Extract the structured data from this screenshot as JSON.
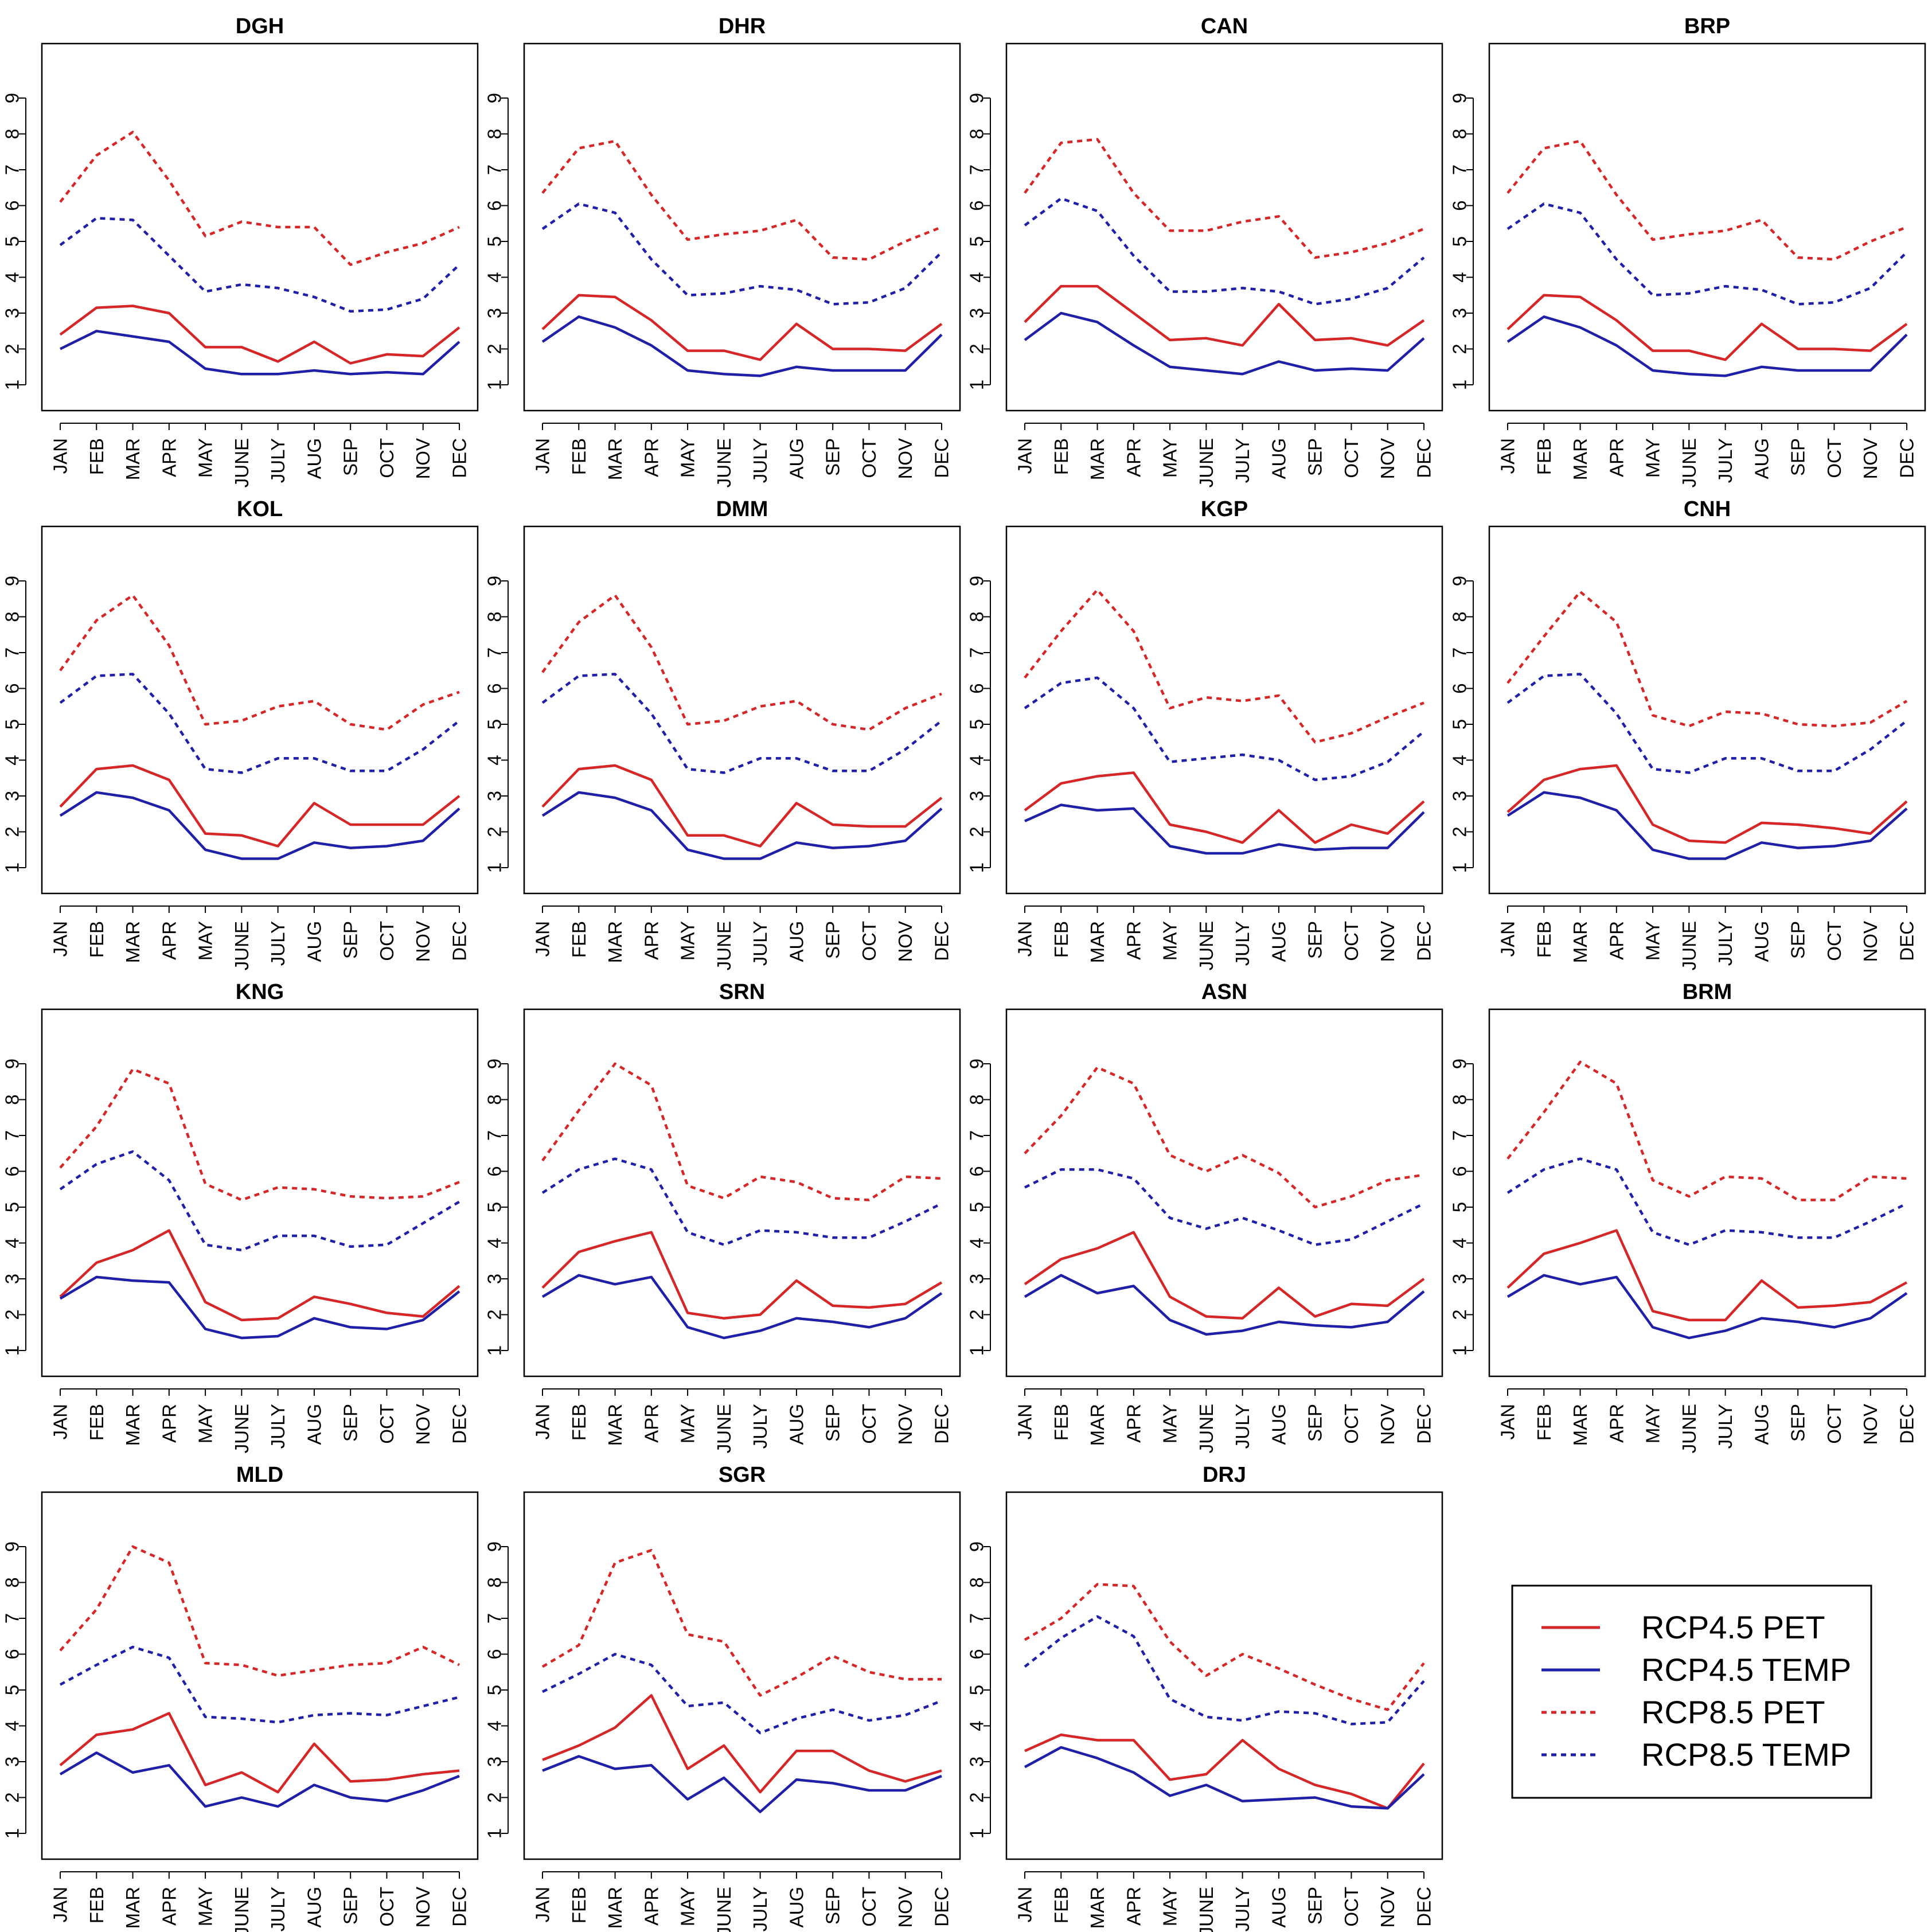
{
  "chart_data": {
    "type": "line",
    "layout": "small-multiples",
    "categories": [
      "JAN",
      "FEB",
      "MAR",
      "APR",
      "MAY",
      "JUNE",
      "JULY",
      "AUG",
      "SEP",
      "OCT",
      "NOV",
      "DEC"
    ],
    "ylim": [
      1,
      9
    ],
    "yticks": [
      "1",
      "2",
      "3",
      "4",
      "5",
      "6",
      "7",
      "8",
      "9"
    ],
    "grid": false,
    "series_styles": [
      {
        "key": "pet45",
        "name": "RCP4.5 PET",
        "color": "#d62728",
        "dash": "solid"
      },
      {
        "key": "temp45",
        "name": "RCP4.5 TEMP",
        "color": "#1f1fa8",
        "dash": "solid"
      },
      {
        "key": "pet85",
        "name": "RCP8.5 PET",
        "color": "#d62728",
        "dash": "dotted"
      },
      {
        "key": "temp85",
        "name": "RCP8.5 TEMP",
        "color": "#1f1fa8",
        "dash": "dotted"
      }
    ],
    "legend": {
      "position": "bottom-right",
      "entries": [
        "RCP4.5 PET",
        "RCP4.5 TEMP",
        "RCP8.5 PET",
        "RCP8.5 TEMP"
      ]
    },
    "panels": [
      {
        "title": "DGH",
        "pet45": [
          2.4,
          3.15,
          3.2,
          3.0,
          2.05,
          2.05,
          1.65,
          2.2,
          1.6,
          1.85,
          1.8,
          2.6
        ],
        "temp45": [
          2.0,
          2.5,
          2.35,
          2.2,
          1.45,
          1.3,
          1.3,
          1.4,
          1.3,
          1.35,
          1.3,
          2.2
        ],
        "pet85": [
          6.1,
          7.4,
          8.05,
          6.7,
          5.15,
          5.55,
          5.4,
          5.4,
          4.35,
          4.7,
          4.95,
          5.4
        ],
        "temp85": [
          4.9,
          5.65,
          5.6,
          4.6,
          3.6,
          3.8,
          3.7,
          3.45,
          3.05,
          3.1,
          3.4,
          4.35
        ]
      },
      {
        "title": "DHR",
        "pet45": [
          2.55,
          3.5,
          3.45,
          2.8,
          1.95,
          1.95,
          1.7,
          2.7,
          2.0,
          2.0,
          1.95,
          2.7
        ],
        "temp45": [
          2.2,
          2.9,
          2.6,
          2.1,
          1.4,
          1.3,
          1.25,
          1.5,
          1.4,
          1.4,
          1.4,
          2.4
        ],
        "pet85": [
          6.35,
          7.6,
          7.8,
          6.3,
          5.05,
          5.2,
          5.3,
          5.6,
          4.55,
          4.5,
          5.0,
          5.4
        ],
        "temp85": [
          5.35,
          6.05,
          5.8,
          4.5,
          3.5,
          3.55,
          3.75,
          3.65,
          3.25,
          3.3,
          3.7,
          4.7
        ]
      },
      {
        "title": "CAN",
        "pet45": [
          2.75,
          3.75,
          3.75,
          3.0,
          2.25,
          2.3,
          2.1,
          3.25,
          2.25,
          2.3,
          2.1,
          2.8
        ],
        "temp45": [
          2.25,
          3.0,
          2.75,
          2.1,
          1.5,
          1.4,
          1.3,
          1.65,
          1.4,
          1.45,
          1.4,
          2.3
        ],
        "pet85": [
          6.35,
          7.75,
          7.85,
          6.35,
          5.3,
          5.3,
          5.55,
          5.7,
          4.55,
          4.7,
          4.95,
          5.35
        ],
        "temp85": [
          5.45,
          6.2,
          5.85,
          4.6,
          3.6,
          3.6,
          3.7,
          3.6,
          3.25,
          3.4,
          3.7,
          4.55
        ]
      },
      {
        "title": "BRP",
        "pet45": [
          2.55,
          3.5,
          3.45,
          2.8,
          1.95,
          1.95,
          1.7,
          2.7,
          2.0,
          2.0,
          1.95,
          2.7
        ],
        "temp45": [
          2.2,
          2.9,
          2.6,
          2.1,
          1.4,
          1.3,
          1.25,
          1.5,
          1.4,
          1.4,
          1.4,
          2.4
        ],
        "pet85": [
          6.35,
          7.6,
          7.8,
          6.3,
          5.05,
          5.2,
          5.3,
          5.6,
          4.55,
          4.5,
          5.0,
          5.4
        ],
        "temp85": [
          5.35,
          6.05,
          5.8,
          4.5,
          3.5,
          3.55,
          3.75,
          3.65,
          3.25,
          3.3,
          3.7,
          4.7
        ]
      },
      {
        "title": "KOL",
        "pet45": [
          2.7,
          3.75,
          3.85,
          3.45,
          1.95,
          1.9,
          1.6,
          2.8,
          2.2,
          2.2,
          2.2,
          3.0
        ],
        "temp45": [
          2.45,
          3.1,
          2.95,
          2.6,
          1.5,
          1.25,
          1.25,
          1.7,
          1.55,
          1.6,
          1.75,
          2.65
        ],
        "pet85": [
          6.5,
          7.9,
          8.6,
          7.2,
          5.0,
          5.1,
          5.5,
          5.65,
          5.0,
          4.85,
          5.55,
          5.9
        ],
        "temp85": [
          5.6,
          6.35,
          6.4,
          5.3,
          3.75,
          3.65,
          4.05,
          4.05,
          3.7,
          3.7,
          4.3,
          5.1
        ]
      },
      {
        "title": "DMM",
        "pet45": [
          2.7,
          3.75,
          3.85,
          3.45,
          1.9,
          1.9,
          1.6,
          2.8,
          2.2,
          2.15,
          2.15,
          2.95
        ],
        "temp45": [
          2.45,
          3.1,
          2.95,
          2.6,
          1.5,
          1.25,
          1.25,
          1.7,
          1.55,
          1.6,
          1.75,
          2.65
        ],
        "pet85": [
          6.45,
          7.85,
          8.6,
          7.15,
          5.0,
          5.1,
          5.5,
          5.65,
          5.0,
          4.85,
          5.45,
          5.85
        ],
        "temp85": [
          5.6,
          6.35,
          6.4,
          5.3,
          3.75,
          3.65,
          4.05,
          4.05,
          3.7,
          3.7,
          4.3,
          5.1
        ]
      },
      {
        "title": "KGP",
        "pet45": [
          2.6,
          3.35,
          3.55,
          3.65,
          2.2,
          2.0,
          1.7,
          2.6,
          1.7,
          2.2,
          1.95,
          2.85
        ],
        "temp45": [
          2.3,
          2.75,
          2.6,
          2.65,
          1.6,
          1.4,
          1.4,
          1.65,
          1.5,
          1.55,
          1.55,
          2.55
        ],
        "pet85": [
          6.3,
          7.6,
          8.75,
          7.6,
          5.45,
          5.75,
          5.65,
          5.8,
          4.5,
          4.75,
          5.2,
          5.6
        ],
        "temp85": [
          5.45,
          6.15,
          6.3,
          5.45,
          3.95,
          4.05,
          4.15,
          4.0,
          3.45,
          3.55,
          3.95,
          4.8
        ]
      },
      {
        "title": "CNH",
        "pet45": [
          2.55,
          3.45,
          3.75,
          3.85,
          2.2,
          1.75,
          1.7,
          2.25,
          2.2,
          2.1,
          1.95,
          2.85
        ],
        "temp45": [
          2.45,
          3.1,
          2.95,
          2.6,
          1.5,
          1.25,
          1.25,
          1.7,
          1.55,
          1.6,
          1.75,
          2.65
        ],
        "pet85": [
          6.15,
          7.45,
          8.7,
          7.85,
          5.25,
          4.95,
          5.35,
          5.3,
          5.0,
          4.95,
          5.05,
          5.65
        ],
        "temp85": [
          5.6,
          6.35,
          6.4,
          5.3,
          3.75,
          3.65,
          4.05,
          4.05,
          3.7,
          3.7,
          4.3,
          5.1
        ]
      },
      {
        "title": "KNG",
        "pet45": [
          2.5,
          3.45,
          3.8,
          4.35,
          2.35,
          1.85,
          1.9,
          2.5,
          2.3,
          2.05,
          1.95,
          2.8
        ],
        "temp45": [
          2.45,
          3.05,
          2.95,
          2.9,
          1.6,
          1.35,
          1.4,
          1.9,
          1.65,
          1.6,
          1.85,
          2.65
        ],
        "pet85": [
          6.1,
          7.25,
          8.85,
          8.45,
          5.65,
          5.2,
          5.55,
          5.5,
          5.3,
          5.25,
          5.3,
          5.7
        ],
        "temp85": [
          5.5,
          6.2,
          6.55,
          5.75,
          3.95,
          3.8,
          4.2,
          4.2,
          3.9,
          3.95,
          4.55,
          5.15
        ]
      },
      {
        "title": "SRN",
        "pet45": [
          2.75,
          3.75,
          4.05,
          4.3,
          2.05,
          1.9,
          2.0,
          2.95,
          2.25,
          2.2,
          2.3,
          2.9
        ],
        "temp45": [
          2.5,
          3.1,
          2.85,
          3.05,
          1.65,
          1.35,
          1.55,
          1.9,
          1.8,
          1.65,
          1.9,
          2.6
        ],
        "pet85": [
          6.3,
          7.7,
          9.0,
          8.4,
          5.6,
          5.25,
          5.85,
          5.7,
          5.25,
          5.2,
          5.85,
          5.8
        ],
        "temp85": [
          5.4,
          6.05,
          6.35,
          6.05,
          4.3,
          3.95,
          4.35,
          4.3,
          4.15,
          4.15,
          4.6,
          5.1
        ]
      },
      {
        "title": "ASN",
        "pet45": [
          2.85,
          3.55,
          3.85,
          4.3,
          2.5,
          1.95,
          1.9,
          2.75,
          1.95,
          2.3,
          2.25,
          3.0
        ],
        "temp45": [
          2.5,
          3.1,
          2.6,
          2.8,
          1.85,
          1.45,
          1.55,
          1.8,
          1.7,
          1.65,
          1.8,
          2.65
        ],
        "pet85": [
          6.5,
          7.55,
          8.9,
          8.45,
          6.45,
          6.0,
          6.45,
          5.95,
          5.0,
          5.3,
          5.75,
          5.9
        ],
        "temp85": [
          5.55,
          6.05,
          6.05,
          5.8,
          4.7,
          4.4,
          4.7,
          4.35,
          3.95,
          4.1,
          4.6,
          5.1
        ]
      },
      {
        "title": "BRM",
        "pet45": [
          2.75,
          3.7,
          4.0,
          4.35,
          2.1,
          1.85,
          1.85,
          2.95,
          2.2,
          2.25,
          2.35,
          2.9
        ],
        "temp45": [
          2.5,
          3.1,
          2.85,
          3.05,
          1.65,
          1.35,
          1.55,
          1.9,
          1.8,
          1.65,
          1.9,
          2.6
        ],
        "pet85": [
          6.35,
          7.65,
          9.05,
          8.45,
          5.75,
          5.3,
          5.85,
          5.8,
          5.2,
          5.2,
          5.85,
          5.8
        ],
        "temp85": [
          5.4,
          6.05,
          6.35,
          6.05,
          4.3,
          3.95,
          4.35,
          4.3,
          4.15,
          4.15,
          4.6,
          5.1
        ]
      },
      {
        "title": "MLD",
        "pet45": [
          2.9,
          3.75,
          3.9,
          4.35,
          2.35,
          2.7,
          2.15,
          3.5,
          2.45,
          2.5,
          2.65,
          2.75
        ],
        "temp45": [
          2.65,
          3.25,
          2.7,
          2.9,
          1.75,
          2.0,
          1.75,
          2.35,
          2.0,
          1.9,
          2.2,
          2.6
        ],
        "pet85": [
          6.1,
          7.25,
          9.0,
          8.55,
          5.75,
          5.7,
          5.4,
          5.55,
          5.7,
          5.75,
          6.2,
          5.7
        ],
        "temp85": [
          5.15,
          5.7,
          6.2,
          5.9,
          4.25,
          4.2,
          4.1,
          4.3,
          4.35,
          4.3,
          4.55,
          4.8
        ]
      },
      {
        "title": "SGR",
        "pet45": [
          3.05,
          3.45,
          3.95,
          4.85,
          2.8,
          3.45,
          2.15,
          3.3,
          3.3,
          2.75,
          2.45,
          2.75
        ],
        "temp45": [
          2.75,
          3.15,
          2.8,
          2.9,
          1.95,
          2.55,
          1.6,
          2.5,
          2.4,
          2.2,
          2.2,
          2.6
        ],
        "pet85": [
          5.65,
          6.25,
          8.55,
          8.9,
          6.55,
          6.35,
          4.85,
          5.35,
          5.95,
          5.5,
          5.3,
          5.3
        ],
        "temp85": [
          4.95,
          5.45,
          6.0,
          5.7,
          4.55,
          4.65,
          3.8,
          4.2,
          4.45,
          4.15,
          4.3,
          4.7
        ]
      },
      {
        "title": "DRJ",
        "pet45": [
          3.3,
          3.75,
          3.6,
          3.6,
          2.5,
          2.65,
          3.6,
          2.8,
          2.35,
          2.1,
          1.7,
          2.95
        ],
        "temp45": [
          2.85,
          3.4,
          3.1,
          2.7,
          2.05,
          2.35,
          1.9,
          1.95,
          2.0,
          1.75,
          1.7,
          2.65
        ],
        "pet85": [
          6.4,
          7.0,
          7.95,
          7.9,
          6.35,
          5.4,
          6.0,
          5.6,
          5.15,
          4.75,
          4.45,
          5.75
        ],
        "temp85": [
          5.65,
          6.45,
          7.05,
          6.5,
          4.75,
          4.25,
          4.15,
          4.4,
          4.35,
          4.05,
          4.1,
          5.25
        ]
      }
    ]
  }
}
